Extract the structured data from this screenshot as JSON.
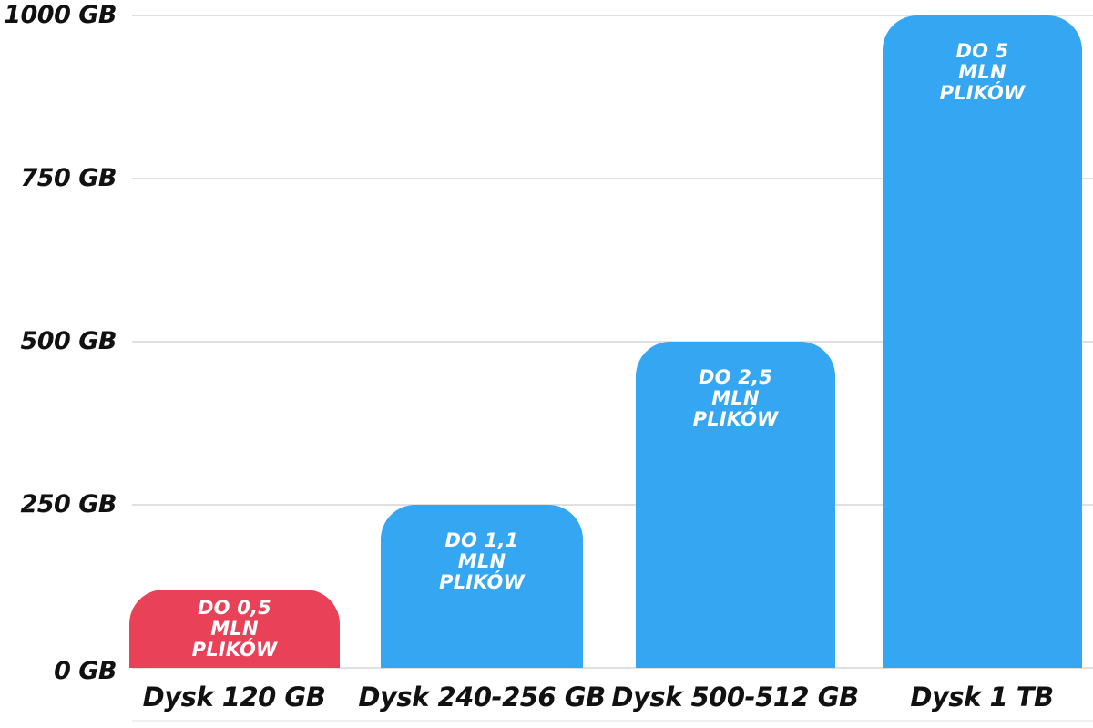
{
  "chart_data": {
    "type": "bar",
    "title": "",
    "xlabel": "",
    "ylabel": "",
    "unit": "GB",
    "ylim": [
      0,
      1000
    ],
    "grid": true,
    "legend": false,
    "categories": [
      "Dysk 120 GB",
      "Dysk 240-256 GB",
      "Dysk 500-512 GB",
      "Dysk 1 TB"
    ],
    "values": [
      120,
      250,
      500,
      1000
    ],
    "yticks": [
      {
        "label": "1000 GB",
        "value": 1000
      },
      {
        "label": "750 GB",
        "value": 750
      },
      {
        "label": "500 GB",
        "value": 500
      },
      {
        "label": "250 GB",
        "value": 250
      },
      {
        "label": "0 GB",
        "value": 0
      }
    ],
    "bars": [
      {
        "category": "Dysk 120 GB",
        "value": 120,
        "color": "#E84158",
        "label_lines": [
          "DO 0,5",
          "MLN",
          "PLIKÓW"
        ]
      },
      {
        "category": "Dysk 240-256 GB",
        "value": 250,
        "color": "#35A7F2",
        "label_lines": [
          "DO 1,1",
          "MLN",
          "PLIKÓW"
        ]
      },
      {
        "category": "Dysk 500-512 GB",
        "value": 500,
        "color": "#35A7F2",
        "label_lines": [
          "DO 2,5",
          "MLN",
          "PLIKÓW"
        ]
      },
      {
        "category": "Dysk 1 TB",
        "value": 1000,
        "color": "#35A7F2",
        "label_lines": [
          "DO 5",
          "MLN",
          "PLIKÓW"
        ]
      }
    ],
    "colors": {
      "bar_default": "#35A7F2",
      "bar_highlight": "#E84158",
      "grid": "#E0E0E0",
      "axis_text": "#111111",
      "bar_label_text": "#FFFFFF",
      "background": "#FFFFFF"
    }
  }
}
